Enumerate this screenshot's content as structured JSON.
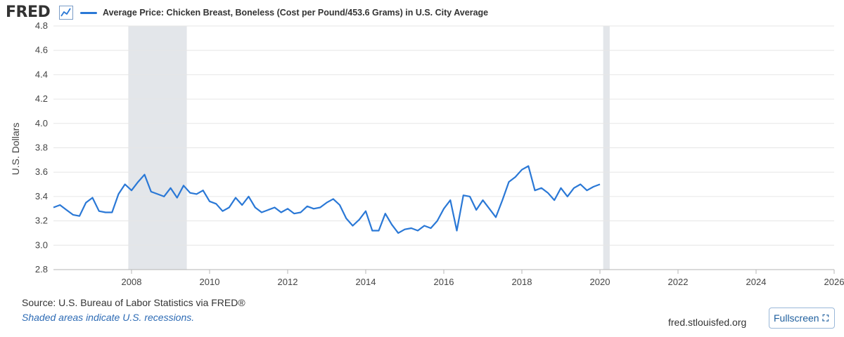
{
  "header": {
    "logo_text": "FRED",
    "series_title": "Average Price: Chicken Breast, Boneless (Cost per Pound/453.6 Grams) in U.S. City Average"
  },
  "footer": {
    "source": "Source: U.S. Bureau of Labor Statistics via FRED®",
    "recession_note": "Shaded areas indicate U.S. recessions.",
    "site": "fred.stlouisfed.org",
    "fullscreen_label": "Fullscreen"
  },
  "icons": {
    "logo": "line-chart-icon",
    "fullscreen": "expand-icon"
  },
  "colors": {
    "line": "#2a78d6",
    "recession": "#e3e6ea",
    "grid": "#e6e6e6"
  },
  "chart_data": {
    "type": "line",
    "title": "",
    "xlabel": "",
    "ylabel": "U.S. Dollars",
    "ylim": [
      2.8,
      4.8
    ],
    "xlim": [
      "2006-01",
      "2026-01"
    ],
    "yticks": [
      2.8,
      3.0,
      3.2,
      3.4,
      3.6,
      3.8,
      4.0,
      4.2,
      4.4,
      4.6,
      4.8
    ],
    "xticks": [
      "2008",
      "2010",
      "2012",
      "2014",
      "2016",
      "2018",
      "2020",
      "2022",
      "2024",
      "2026"
    ],
    "grid": true,
    "legend": "top-left",
    "recessions": [
      {
        "start": "2007-12",
        "end": "2009-06"
      },
      {
        "start": "2020-02",
        "end": "2020-04"
      }
    ],
    "series": [
      {
        "name": "Average Price: Chicken Breast, Boneless (Cost per Pound/453.6 Grams) in U.S. City Average",
        "points": [
          [
            "2006-01",
            3.31
          ],
          [
            "2006-03",
            3.33
          ],
          [
            "2006-05",
            3.29
          ],
          [
            "2006-07",
            3.25
          ],
          [
            "2006-09",
            3.24
          ],
          [
            "2006-11",
            3.35
          ],
          [
            "2007-01",
            3.39
          ],
          [
            "2007-03",
            3.28
          ],
          [
            "2007-05",
            3.27
          ],
          [
            "2007-07",
            3.27
          ],
          [
            "2007-09",
            3.42
          ],
          [
            "2007-11",
            3.5
          ],
          [
            "2008-01",
            3.45
          ],
          [
            "2008-03",
            3.52
          ],
          [
            "2008-05",
            3.58
          ],
          [
            "2008-07",
            3.44
          ],
          [
            "2008-09",
            3.42
          ],
          [
            "2008-11",
            3.4
          ],
          [
            "2009-01",
            3.47
          ],
          [
            "2009-03",
            3.39
          ],
          [
            "2009-05",
            3.49
          ],
          [
            "2009-07",
            3.43
          ],
          [
            "2009-09",
            3.42
          ],
          [
            "2009-11",
            3.45
          ],
          [
            "2010-01",
            3.36
          ],
          [
            "2010-03",
            3.34
          ],
          [
            "2010-05",
            3.28
          ],
          [
            "2010-07",
            3.31
          ],
          [
            "2010-09",
            3.39
          ],
          [
            "2010-11",
            3.33
          ],
          [
            "2011-01",
            3.4
          ],
          [
            "2011-03",
            3.31
          ],
          [
            "2011-05",
            3.27
          ],
          [
            "2011-07",
            3.29
          ],
          [
            "2011-09",
            3.31
          ],
          [
            "2011-11",
            3.27
          ],
          [
            "2012-01",
            3.3
          ],
          [
            "2012-03",
            3.26
          ],
          [
            "2012-05",
            3.27
          ],
          [
            "2012-07",
            3.32
          ],
          [
            "2012-09",
            3.3
          ],
          [
            "2012-11",
            3.31
          ],
          [
            "2013-01",
            3.35
          ],
          [
            "2013-03",
            3.38
          ],
          [
            "2013-05",
            3.33
          ],
          [
            "2013-07",
            3.22
          ],
          [
            "2013-09",
            3.16
          ],
          [
            "2013-11",
            3.21
          ],
          [
            "2014-01",
            3.28
          ],
          [
            "2014-03",
            3.12
          ],
          [
            "2014-05",
            3.12
          ],
          [
            "2014-07",
            3.26
          ],
          [
            "2014-09",
            3.17
          ],
          [
            "2014-11",
            3.1
          ],
          [
            "2015-01",
            3.13
          ],
          [
            "2015-03",
            3.14
          ],
          [
            "2015-05",
            3.12
          ],
          [
            "2015-07",
            3.16
          ],
          [
            "2015-09",
            3.14
          ],
          [
            "2015-11",
            3.2
          ],
          [
            "2016-01",
            3.3
          ],
          [
            "2016-03",
            3.37
          ],
          [
            "2016-05",
            3.12
          ],
          [
            "2016-07",
            3.41
          ],
          [
            "2016-09",
            3.4
          ],
          [
            "2016-11",
            3.29
          ],
          [
            "2017-01",
            3.37
          ],
          [
            "2017-03",
            3.3
          ],
          [
            "2017-05",
            3.23
          ],
          [
            "2017-07",
            3.37
          ],
          [
            "2017-09",
            3.52
          ],
          [
            "2017-11",
            3.56
          ],
          [
            "2018-01",
            3.62
          ],
          [
            "2018-03",
            3.65
          ],
          [
            "2018-05",
            3.45
          ],
          [
            "2018-07",
            3.47
          ],
          [
            "2018-09",
            3.43
          ],
          [
            "2018-11",
            3.37
          ],
          [
            "2019-01",
            3.47
          ],
          [
            "2019-03",
            3.4
          ],
          [
            "2019-05",
            3.47
          ],
          [
            "2019-07",
            3.5
          ],
          [
            "2019-09",
            3.45
          ],
          [
            "2019-11",
            3.48
          ],
          [
            "2020-01",
            3.5
          ]
        ]
      }
    ]
  }
}
